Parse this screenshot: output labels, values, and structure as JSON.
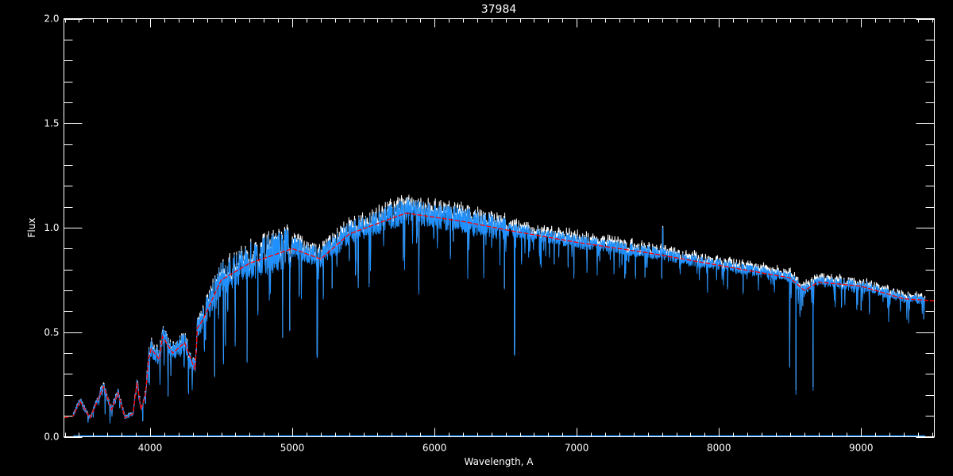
{
  "chart_data": {
    "type": "line",
    "title": "37984",
    "xlabel": "Wavelength, A",
    "ylabel": "Flux",
    "xlim": [
      3394,
      9515
    ],
    "ylim": [
      0,
      2.0
    ],
    "x_ticks": [
      4000,
      5000,
      6000,
      7000,
      8000,
      9000
    ],
    "x_tick_labels": [
      "4000",
      "5000",
      "6000",
      "7000",
      "8000",
      "9000"
    ],
    "y_ticks": [
      0,
      0.5,
      1.0,
      1.5,
      2.0
    ],
    "y_tick_labels": [
      "0.0",
      "0.5",
      "1.0",
      "1.5",
      "2.0"
    ],
    "grid": false,
    "colors": {
      "background": "#000000",
      "axes": "#ffffff",
      "observed": "#1e90ff",
      "observed_upper": "#ffffff",
      "model": "#ff0000",
      "error": "#1e90ff"
    },
    "model_curve": {
      "x": [
        3394,
        3460,
        3506,
        3578,
        3673,
        3729,
        3774,
        3824,
        3880,
        3908,
        3936,
        3964,
        3992,
        4008,
        4064,
        4087,
        4159,
        4243,
        4316,
        4333,
        4372,
        4500,
        4700,
        5000,
        5200,
        5400,
        5600,
        5800,
        5900,
        6000,
        6200,
        6500,
        7000,
        7500,
        8000,
        8500,
        8600,
        8700,
        9000,
        9200,
        9300,
        9515
      ],
      "y": [
        0.09,
        0.1,
        0.17,
        0.09,
        0.24,
        0.13,
        0.21,
        0.09,
        0.11,
        0.26,
        0.13,
        0.19,
        0.38,
        0.42,
        0.37,
        0.48,
        0.4,
        0.45,
        0.32,
        0.52,
        0.56,
        0.75,
        0.83,
        0.9,
        0.85,
        0.97,
        1.02,
        1.07,
        1.06,
        1.05,
        1.03,
        0.99,
        0.93,
        0.88,
        0.82,
        0.76,
        0.7,
        0.74,
        0.72,
        0.68,
        0.66,
        0.65
      ]
    },
    "observed_range": [
      3460,
      9450
    ],
    "absorption_lines": [
      {
        "x": 5175,
        "y": 0.38
      },
      {
        "x": 5890,
        "y": 0.68
      },
      {
        "x": 6563,
        "y": 0.39
      },
      {
        "x": 8498,
        "y": 0.33
      },
      {
        "x": 8542,
        "y": 0.2
      },
      {
        "x": 8662,
        "y": 0.22
      }
    ],
    "emission_spikes": [
      {
        "x": 7605,
        "y": 1.0
      }
    ],
    "error_level": 0.0
  }
}
